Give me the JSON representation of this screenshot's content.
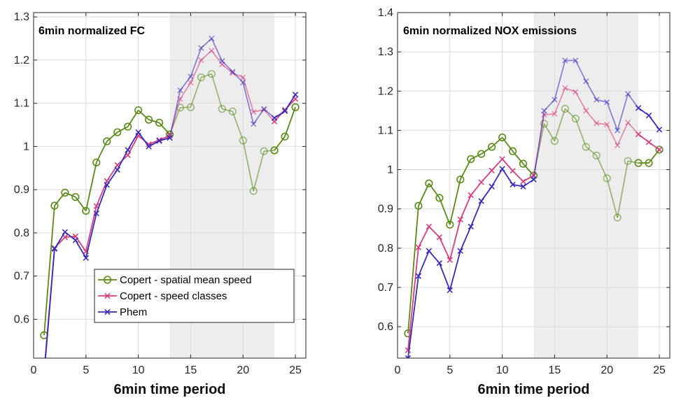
{
  "chart_data": [
    {
      "type": "line",
      "title": "6min normalized FC",
      "xlabel": "6min time period",
      "ylabel": "",
      "xlim": [
        0,
        26
      ],
      "ylim": [
        0.51,
        1.31
      ],
      "xticks": [
        "0",
        "5",
        "10",
        "15",
        "20",
        "25"
      ],
      "yticks": [
        "0.6",
        "0.7",
        "0.8",
        "0.9",
        "1",
        "1.1",
        "1.2",
        "1.3"
      ],
      "ytick_values": [
        0.6,
        0.7,
        0.8,
        0.9,
        1.0,
        1.1,
        1.2,
        1.3
      ],
      "xtick_values": [
        0,
        5,
        10,
        15,
        20,
        25
      ],
      "grid": true,
      "shaded_region": [
        13,
        23
      ],
      "legend_position": "bottom-right",
      "x": [
        1,
        2,
        3,
        4,
        5,
        6,
        7,
        8,
        9,
        10,
        11,
        12,
        13,
        14,
        15,
        16,
        17,
        18,
        19,
        20,
        21,
        22,
        23,
        24,
        25
      ],
      "series": [
        {
          "name": "Copert - spatial mean speed",
          "color": "#5a8a1a",
          "marker": "circle",
          "values": [
            0.563,
            0.863,
            0.893,
            0.883,
            0.851,
            0.963,
            1.012,
            1.033,
            1.046,
            1.084,
            1.062,
            1.055,
            1.028,
            1.09,
            1.091,
            1.16,
            1.168,
            1.087,
            1.081,
            1.014,
            0.897,
            0.989,
            0.991,
            1.023,
            1.091
          ]
        },
        {
          "name": "Copert - speed classes",
          "color": "#d43f7d",
          "marker": "x",
          "values": [
            0.48,
            0.765,
            0.79,
            0.792,
            0.757,
            0.862,
            0.92,
            0.957,
            0.98,
            1.025,
            1.005,
            1.015,
            1.025,
            1.11,
            1.148,
            1.2,
            1.222,
            1.19,
            1.17,
            1.16,
            1.08,
            1.085,
            1.058,
            1.085,
            1.11
          ]
        },
        {
          "name": "Phem",
          "color": "#3a2bb8",
          "marker": "x",
          "values": [
            0.47,
            0.763,
            0.802,
            0.783,
            0.742,
            0.845,
            0.911,
            0.946,
            0.992,
            1.033,
            1.0,
            1.013,
            1.02,
            1.13,
            1.162,
            1.228,
            1.25,
            1.198,
            1.173,
            1.148,
            1.052,
            1.087,
            1.066,
            1.082,
            1.12
          ]
        }
      ]
    },
    {
      "type": "line",
      "title": "6min normalized NOX emissions",
      "xlabel": "6min time period",
      "ylabel": "",
      "xlim": [
        0,
        26
      ],
      "ylim": [
        0.52,
        1.4
      ],
      "xticks": [
        "0",
        "5",
        "10",
        "15",
        "20",
        "25"
      ],
      "yticks": [
        "0.6",
        "0.7",
        "0.8",
        "0.9",
        "1",
        "1.1",
        "1.2",
        "1.3",
        "1.4"
      ],
      "ytick_values": [
        0.6,
        0.7,
        0.8,
        0.9,
        1.0,
        1.1,
        1.2,
        1.3,
        1.4
      ],
      "xtick_values": [
        0,
        5,
        10,
        15,
        20,
        25
      ],
      "grid": true,
      "shaded_region": [
        13,
        23
      ],
      "legend_position": "none",
      "x": [
        1,
        2,
        3,
        4,
        5,
        6,
        7,
        8,
        9,
        10,
        11,
        12,
        13,
        14,
        15,
        16,
        17,
        18,
        19,
        20,
        21,
        22,
        23,
        24,
        25
      ],
      "series": [
        {
          "name": "Copert - spatial mean speed",
          "color": "#5a8a1a",
          "marker": "circle",
          "values": [
            0.583,
            0.908,
            0.965,
            0.928,
            0.86,
            0.975,
            1.027,
            1.04,
            1.058,
            1.082,
            1.047,
            1.015,
            0.985,
            1.117,
            1.073,
            1.155,
            1.13,
            1.058,
            1.036,
            0.978,
            0.878,
            1.022,
            1.017,
            1.017,
            1.051
          ]
        },
        {
          "name": "Copert - speed classes",
          "color": "#d43f7d",
          "marker": "x",
          "values": [
            0.54,
            0.802,
            0.855,
            0.828,
            0.77,
            0.873,
            0.935,
            0.968,
            0.998,
            1.027,
            0.997,
            0.97,
            0.985,
            1.14,
            1.142,
            1.208,
            1.198,
            1.15,
            1.118,
            1.115,
            1.062,
            1.12,
            1.09,
            1.07,
            1.051
          ]
        },
        {
          "name": "Phem",
          "color": "#3a2bb8",
          "marker": "x",
          "values": [
            0.52,
            0.729,
            0.793,
            0.762,
            0.693,
            0.793,
            0.855,
            0.92,
            0.957,
            1.002,
            0.962,
            0.957,
            0.975,
            1.15,
            1.178,
            1.278,
            1.278,
            1.225,
            1.178,
            1.172,
            1.1,
            1.193,
            1.157,
            1.138,
            1.102
          ]
        }
      ]
    }
  ]
}
